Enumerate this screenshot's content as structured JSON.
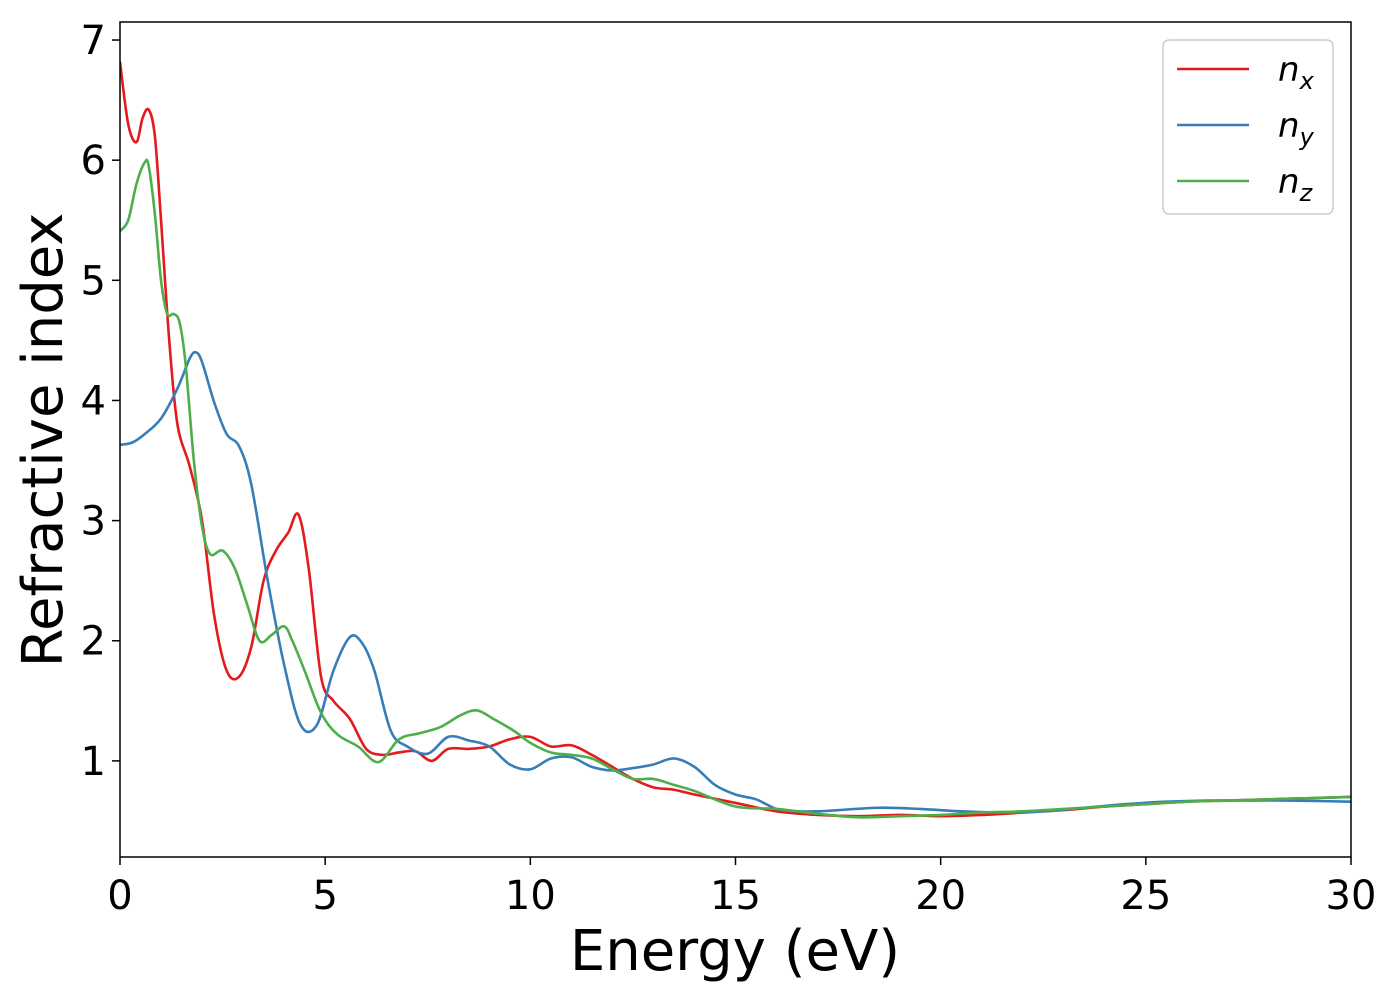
{
  "chart_data": {
    "type": "line",
    "xlabel": "Energy (eV)",
    "ylabel": "Refractive index",
    "xlim": [
      0,
      30
    ],
    "ylim": [
      0.2,
      7.15
    ],
    "xticks": [
      "0",
      "5",
      "10",
      "15",
      "20",
      "25",
      "30"
    ],
    "yticks": [
      "1",
      "2",
      "3",
      "4",
      "5",
      "6",
      "7"
    ],
    "grid": false,
    "legend_position": "top-right",
    "series": [
      {
        "name": "n_x",
        "label_base": "n",
        "label_sub": "x",
        "color": "#e41a1c",
        "x": [
          0,
          0.2,
          0.4,
          0.55,
          0.7,
          0.85,
          1.0,
          1.2,
          1.4,
          1.7,
          2.0,
          2.3,
          2.6,
          2.9,
          3.2,
          3.5,
          3.8,
          4.1,
          4.35,
          4.6,
          4.9,
          5.2,
          5.6,
          6.0,
          6.4,
          6.8,
          7.2,
          7.6,
          8.0,
          8.5,
          9.0,
          9.5,
          10.0,
          10.5,
          11.0,
          11.5,
          12.0,
          12.5,
          13.0,
          13.5,
          14.0,
          15.0,
          16.0,
          17.0,
          18.0,
          19.0,
          20.0,
          21.0,
          22.0,
          23.0,
          24.0,
          25.0,
          26.0,
          27.0,
          28.0,
          29.0,
          30.0
        ],
        "y": [
          6.82,
          6.3,
          6.15,
          6.35,
          6.42,
          6.2,
          5.5,
          4.5,
          3.8,
          3.45,
          3.0,
          2.2,
          1.75,
          1.7,
          1.95,
          2.5,
          2.75,
          2.9,
          3.05,
          2.6,
          1.7,
          1.5,
          1.35,
          1.1,
          1.05,
          1.07,
          1.08,
          1.0,
          1.1,
          1.1,
          1.12,
          1.18,
          1.2,
          1.12,
          1.13,
          1.05,
          0.95,
          0.85,
          0.78,
          0.76,
          0.72,
          0.65,
          0.58,
          0.55,
          0.54,
          0.55,
          0.54,
          0.55,
          0.57,
          0.59,
          0.62,
          0.64,
          0.66,
          0.67,
          0.68,
          0.69,
          0.7
        ]
      },
      {
        "name": "n_y",
        "label_base": "n",
        "label_sub": "y",
        "color": "#377eb8",
        "x": [
          0,
          0.3,
          0.6,
          1.0,
          1.4,
          1.7,
          1.85,
          2.0,
          2.3,
          2.6,
          2.9,
          3.2,
          3.6,
          4.0,
          4.4,
          4.8,
          5.2,
          5.6,
          5.9,
          6.2,
          6.6,
          7.0,
          7.5,
          8.0,
          8.5,
          9.0,
          9.5,
          10.0,
          10.5,
          11.0,
          11.5,
          12.0,
          12.5,
          13.0,
          13.5,
          14.0,
          14.5,
          15.0,
          15.5,
          16.0,
          16.5,
          17.0,
          17.5,
          18.5,
          19.5,
          20.5,
          21.5,
          22.5,
          23.5,
          24.5,
          25.5,
          26.5,
          27.5,
          28.5,
          30.0
        ],
        "y": [
          3.63,
          3.65,
          3.72,
          3.85,
          4.1,
          4.35,
          4.4,
          4.32,
          3.98,
          3.72,
          3.62,
          3.3,
          2.5,
          1.8,
          1.3,
          1.3,
          1.75,
          2.03,
          1.98,
          1.75,
          1.25,
          1.12,
          1.06,
          1.2,
          1.17,
          1.12,
          0.97,
          0.93,
          1.02,
          1.03,
          0.95,
          0.92,
          0.94,
          0.97,
          1.02,
          0.95,
          0.8,
          0.72,
          0.68,
          0.6,
          0.58,
          0.58,
          0.59,
          0.61,
          0.6,
          0.58,
          0.57,
          0.58,
          0.61,
          0.64,
          0.66,
          0.67,
          0.67,
          0.67,
          0.66
        ]
      },
      {
        "name": "n_z",
        "label_base": "n",
        "label_sub": "z",
        "color": "#4daf4a",
        "x": [
          0,
          0.2,
          0.4,
          0.6,
          0.7,
          0.85,
          1.0,
          1.15,
          1.3,
          1.45,
          1.6,
          1.8,
          2.0,
          2.2,
          2.5,
          2.8,
          3.1,
          3.4,
          3.7,
          4.0,
          4.2,
          4.5,
          4.9,
          5.3,
          5.8,
          6.3,
          6.8,
          7.3,
          7.8,
          8.3,
          8.7,
          9.1,
          9.6,
          10.0,
          10.5,
          11.0,
          11.5,
          12.0,
          12.5,
          13.0,
          13.5,
          14.0,
          15.0,
          16.0,
          17.0,
          18.0,
          19.0,
          20.0,
          21.0,
          22.0,
          23.0,
          24.0,
          25.0,
          26.0,
          27.0,
          28.0,
          29.0,
          30.0
        ],
        "y": [
          5.41,
          5.5,
          5.8,
          5.98,
          5.95,
          5.55,
          5.0,
          4.72,
          4.72,
          4.65,
          4.3,
          3.5,
          2.95,
          2.72,
          2.75,
          2.6,
          2.3,
          2.0,
          2.05,
          2.12,
          2.0,
          1.75,
          1.4,
          1.22,
          1.12,
          0.99,
          1.18,
          1.23,
          1.28,
          1.38,
          1.42,
          1.35,
          1.25,
          1.15,
          1.07,
          1.05,
          1.02,
          0.93,
          0.85,
          0.85,
          0.8,
          0.75,
          0.62,
          0.6,
          0.56,
          0.53,
          0.54,
          0.55,
          0.57,
          0.58,
          0.6,
          0.62,
          0.64,
          0.66,
          0.67,
          0.68,
          0.69,
          0.7
        ]
      }
    ]
  }
}
